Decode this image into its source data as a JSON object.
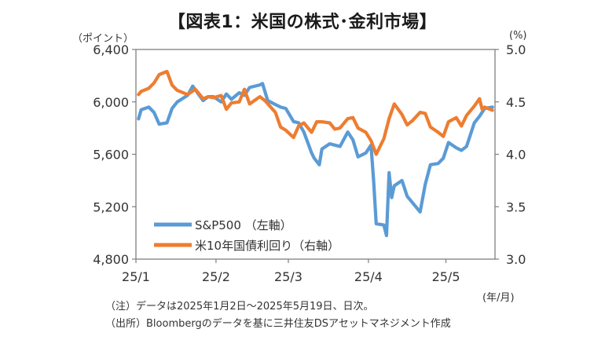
{
  "title": "【図表1：米国の株式･金利市場】",
  "left_unit": "（ポイント）",
  "right_unit": "(%)",
  "period_unit": "(年/月)",
  "notes": [
    "（注）データは2025年1月2日～2025年5月19日、日次。",
    "（出所）Bloombergのデータを基に三井住友DSアセットマネジメント作成"
  ],
  "colors": {
    "sp500": "#5b9bd5",
    "yield": "#ed7d31",
    "axis": "#7f7f7f",
    "text": "#333333"
  },
  "chart_data": {
    "type": "line",
    "title": "【図表1：米国の株式･金利市場】",
    "x_ticks": [
      "25/1",
      "25/2",
      "25/3",
      "25/4",
      "25/5"
    ],
    "x_tick_dates": [
      "2025-01-01",
      "2025-02-01",
      "2025-03-01",
      "2025-04-01",
      "2025-05-01"
    ],
    "xlim": [
      "2025-01-01",
      "2025-05-20"
    ],
    "y_left": {
      "label": "（ポイント）",
      "lim": [
        4800,
        6400
      ],
      "ticks": [
        "4,800",
        "5,200",
        "5,600",
        "6,000",
        "6,400"
      ],
      "tick_values": [
        4800,
        5200,
        5600,
        6000,
        6400
      ]
    },
    "y_right": {
      "label": "(%)",
      "lim": [
        3.0,
        5.0
      ],
      "ticks": [
        "3.0",
        "3.5",
        "4.0",
        "4.5",
        "5.0"
      ],
      "tick_values": [
        3.0,
        3.5,
        4.0,
        4.5,
        5.0
      ]
    },
    "grid": false,
    "legend_position": "bottom-left",
    "series": [
      {
        "name": "S&P500 （左軸）",
        "axis": "left",
        "color": "#5b9bd5",
        "points": [
          [
            "2025-01-02",
            5870
          ],
          [
            "2025-01-03",
            5940
          ],
          [
            "2025-01-06",
            5960
          ],
          [
            "2025-01-08",
            5920
          ],
          [
            "2025-01-10",
            5830
          ],
          [
            "2025-01-13",
            5840
          ],
          [
            "2025-01-15",
            5950
          ],
          [
            "2025-01-17",
            6000
          ],
          [
            "2025-01-21",
            6050
          ],
          [
            "2025-01-23",
            6120
          ],
          [
            "2025-01-27",
            6010
          ],
          [
            "2025-01-29",
            6040
          ],
          [
            "2025-01-31",
            6040
          ],
          [
            "2025-02-03",
            6000
          ],
          [
            "2025-02-05",
            6060
          ],
          [
            "2025-02-07",
            6020
          ],
          [
            "2025-02-10",
            6070
          ],
          [
            "2025-02-12",
            6050
          ],
          [
            "2025-02-14",
            6110
          ],
          [
            "2025-02-18",
            6130
          ],
          [
            "2025-02-19",
            6140
          ],
          [
            "2025-02-21",
            6010
          ],
          [
            "2025-02-24",
            5980
          ],
          [
            "2025-02-26",
            5960
          ],
          [
            "2025-02-28",
            5950
          ],
          [
            "2025-03-03",
            5850
          ],
          [
            "2025-03-05",
            5840
          ],
          [
            "2025-03-07",
            5770
          ],
          [
            "2025-03-10",
            5610
          ],
          [
            "2025-03-11",
            5570
          ],
          [
            "2025-03-13",
            5520
          ],
          [
            "2025-03-14",
            5640
          ],
          [
            "2025-03-17",
            5680
          ],
          [
            "2025-03-19",
            5670
          ],
          [
            "2025-03-21",
            5660
          ],
          [
            "2025-03-24",
            5770
          ],
          [
            "2025-03-26",
            5710
          ],
          [
            "2025-03-28",
            5580
          ],
          [
            "2025-03-31",
            5610
          ],
          [
            "2025-04-02",
            5670
          ],
          [
            "2025-04-03",
            5400
          ],
          [
            "2025-04-04",
            5070
          ],
          [
            "2025-04-07",
            5060
          ],
          [
            "2025-04-08",
            4980
          ],
          [
            "2025-04-09",
            5460
          ],
          [
            "2025-04-10",
            5270
          ],
          [
            "2025-04-11",
            5360
          ],
          [
            "2025-04-14",
            5400
          ],
          [
            "2025-04-16",
            5280
          ],
          [
            "2025-04-21",
            5160
          ],
          [
            "2025-04-23",
            5370
          ],
          [
            "2025-04-25",
            5520
          ],
          [
            "2025-04-28",
            5530
          ],
          [
            "2025-04-30",
            5570
          ],
          [
            "2025-05-02",
            5690
          ],
          [
            "2025-05-05",
            5650
          ],
          [
            "2025-05-07",
            5630
          ],
          [
            "2025-05-09",
            5660
          ],
          [
            "2025-05-12",
            5840
          ],
          [
            "2025-05-14",
            5890
          ],
          [
            "2025-05-16",
            5950
          ],
          [
            "2025-05-19",
            5960
          ]
        ]
      },
      {
        "name": "米10年国債利回り（右軸）",
        "axis": "right",
        "color": "#ed7d31",
        "points": [
          [
            "2025-01-02",
            4.57
          ],
          [
            "2025-01-03",
            4.6
          ],
          [
            "2025-01-06",
            4.63
          ],
          [
            "2025-01-08",
            4.68
          ],
          [
            "2025-01-10",
            4.76
          ],
          [
            "2025-01-13",
            4.79
          ],
          [
            "2025-01-15",
            4.66
          ],
          [
            "2025-01-17",
            4.61
          ],
          [
            "2025-01-21",
            4.57
          ],
          [
            "2025-01-24",
            4.62
          ],
          [
            "2025-01-27",
            4.53
          ],
          [
            "2025-01-29",
            4.55
          ],
          [
            "2025-01-31",
            4.54
          ],
          [
            "2025-02-03",
            4.56
          ],
          [
            "2025-02-05",
            4.43
          ],
          [
            "2025-02-07",
            4.49
          ],
          [
            "2025-02-10",
            4.5
          ],
          [
            "2025-02-12",
            4.62
          ],
          [
            "2025-02-14",
            4.48
          ],
          [
            "2025-02-18",
            4.55
          ],
          [
            "2025-02-20",
            4.51
          ],
          [
            "2025-02-24",
            4.4
          ],
          [
            "2025-02-26",
            4.26
          ],
          [
            "2025-02-28",
            4.23
          ],
          [
            "2025-03-03",
            4.16
          ],
          [
            "2025-03-05",
            4.27
          ],
          [
            "2025-03-07",
            4.3
          ],
          [
            "2025-03-10",
            4.21
          ],
          [
            "2025-03-12",
            4.31
          ],
          [
            "2025-03-14",
            4.31
          ],
          [
            "2025-03-17",
            4.3
          ],
          [
            "2025-03-19",
            4.24
          ],
          [
            "2025-03-21",
            4.25
          ],
          [
            "2025-03-24",
            4.34
          ],
          [
            "2025-03-26",
            4.35
          ],
          [
            "2025-03-28",
            4.25
          ],
          [
            "2025-03-31",
            4.21
          ],
          [
            "2025-04-02",
            4.13
          ],
          [
            "2025-04-04",
            4.0
          ],
          [
            "2025-04-07",
            4.15
          ],
          [
            "2025-04-09",
            4.34
          ],
          [
            "2025-04-11",
            4.48
          ],
          [
            "2025-04-14",
            4.38
          ],
          [
            "2025-04-16",
            4.28
          ],
          [
            "2025-04-18",
            4.32
          ],
          [
            "2025-04-21",
            4.4
          ],
          [
            "2025-04-23",
            4.39
          ],
          [
            "2025-04-25",
            4.26
          ],
          [
            "2025-04-28",
            4.21
          ],
          [
            "2025-04-30",
            4.17
          ],
          [
            "2025-05-02",
            4.31
          ],
          [
            "2025-05-05",
            4.35
          ],
          [
            "2025-05-07",
            4.27
          ],
          [
            "2025-05-09",
            4.37
          ],
          [
            "2025-05-12",
            4.46
          ],
          [
            "2025-05-14",
            4.53
          ],
          [
            "2025-05-15",
            4.43
          ],
          [
            "2025-05-16",
            4.45
          ],
          [
            "2025-05-19",
            4.42
          ]
        ]
      }
    ]
  }
}
